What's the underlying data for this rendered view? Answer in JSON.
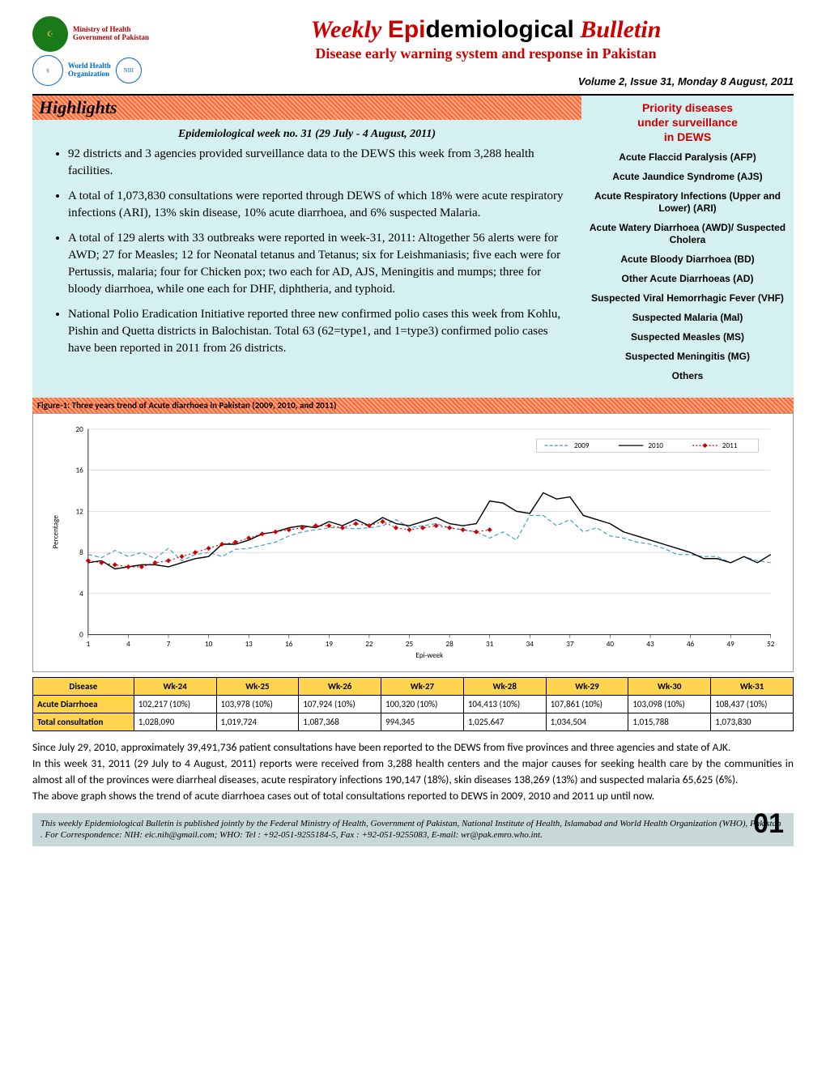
{
  "header": {
    "logos": {
      "moh_line1": "Ministry of Health",
      "moh_line2": "Government of Pakistan",
      "who_line1": "World Health",
      "who_line2": "Organization"
    },
    "title_weekly": "Weekly",
    "title_epi": "Epi",
    "title_demio": "demiological",
    "title_bulletin": " Bulletin",
    "subtitle": "Disease early warning system and response in Pakistan",
    "issue": "Volume 2, Issue  31,  Monday 8 August, 2011"
  },
  "highlights": {
    "banner": "Highlights",
    "week_line": "Epidemiological week no. 31 (29 July - 4 August, 2011)",
    "bullets": [
      "92 districts and 3 agencies provided surveillance data to the DEWS this week from 3,288 health facilities.",
      "A total of 1,073,830 consultations were reported through DEWS of which 18% were acute respiratory infections (ARI), 13% skin disease, 10% acute diarrhoea, and 6% suspected Malaria.",
      "A total of 129 alerts with 33 outbreaks were reported in week-31, 2011: Altogether 56 alerts were for AWD; 27 for Measles; 12 for Neonatal tetanus and Tetanus; six for Leishmaniasis; five each were for Pertussis, malaria; four for Chicken pox; two each for AD, AJS, Meningitis and mumps; three for bloody diarrhoea, while one each for DHF, diphtheria, and typhoid.",
      "National Polio Eradication Initiative reported three new confirmed polio cases this week from Kohlu, Pishin and Quetta districts in Balochistan. Total 63 (62=type1, and 1=type3) confirmed polio cases have been reported in 2011 from 26 districts."
    ]
  },
  "priority": {
    "title_l1": "Priority diseases",
    "title_l2": "under surveillance",
    "title_l3": "in DEWS",
    "items": [
      "Acute Flaccid Paralysis (AFP)",
      "Acute Jaundice Syndrome (AJS)",
      "Acute Respiratory Infections (Upper and Lower) (ARI)",
      "Acute Watery Diarrhoea (AWD)/ Suspected Cholera",
      "Acute Bloody Diarrhoea (BD)",
      "Other Acute Diarrhoeas (AD)",
      "Suspected Viral Hemorrhagic Fever (VHF)",
      "Suspected Malaria (Mal)",
      "Suspected Measles (MS)",
      "Suspected Meningitis (MG)",
      "Others"
    ]
  },
  "figure": {
    "banner": "Figure-1: Three years trend of Acute diarrhoea in Pakistan (2009, 2010, and 2011)",
    "type": "line",
    "y_title": "Percentage",
    "x_title": "Epi-week",
    "ylim": [
      0,
      20
    ],
    "ytick_step": 4,
    "xlim": [
      1,
      52
    ],
    "xtick_step": 3,
    "xticks": [
      1,
      4,
      7,
      10,
      13,
      16,
      19,
      22,
      25,
      28,
      31,
      34,
      37,
      40,
      43,
      46,
      49,
      52
    ],
    "background_color": "#ffffff",
    "grid_color": "#bfbfbf",
    "legend": [
      "2009",
      "2010",
      "2011"
    ],
    "series": {
      "2009": {
        "color": "#3399cc",
        "style": "dashed",
        "marker": "none",
        "values": [
          7.8,
          7.5,
          8.2,
          7.6,
          8.0,
          7.4,
          8.4,
          7.2,
          7.8,
          8.0,
          7.6,
          8.3,
          8.4,
          8.7,
          9.0,
          9.6,
          10.0,
          10.2,
          10.4,
          10.4,
          10.3,
          10.4,
          10.6,
          11.2,
          10.4,
          10.6,
          10.8,
          10.4,
          10.2,
          10.0,
          9.4,
          10.0,
          9.2,
          11.6,
          11.6,
          10.6,
          11.2,
          10.0,
          10.4,
          9.6,
          9.4,
          9.0,
          8.8,
          8.4,
          7.8,
          7.8,
          7.6,
          7.6,
          7.0,
          7.6,
          7.2,
          7.0
        ]
      },
      "2010": {
        "color": "#000000",
        "style": "solid",
        "marker": "none",
        "values": [
          7.0,
          7.2,
          6.4,
          6.6,
          6.8,
          6.8,
          6.6,
          7.0,
          7.4,
          7.6,
          8.8,
          8.8,
          9.2,
          9.8,
          10.0,
          10.4,
          10.6,
          10.4,
          11.0,
          10.6,
          11.2,
          10.6,
          11.4,
          10.8,
          10.6,
          11.0,
          11.4,
          10.8,
          10.6,
          10.8,
          13.0,
          12.8,
          12.0,
          11.8,
          13.8,
          13.2,
          13.4,
          11.6,
          11.2,
          10.8,
          10.0,
          9.6,
          9.2,
          8.8,
          8.4,
          8.0,
          7.4,
          7.4,
          7.0,
          7.6,
          7.0,
          7.8
        ]
      },
      "2011": {
        "color": "#cc0000",
        "style": "dotted",
        "marker": "diamond",
        "values": [
          7.2,
          7.0,
          6.8,
          6.6,
          6.6,
          7.0,
          7.2,
          7.6,
          8.0,
          8.4,
          8.8,
          9.0,
          9.4,
          9.8,
          10.0,
          10.2,
          10.4,
          10.6,
          10.6,
          10.4,
          10.8,
          10.6,
          11.0,
          10.4,
          10.2,
          10.4,
          10.6,
          10.4,
          10.2,
          10.0,
          10.2
        ]
      }
    }
  },
  "table": {
    "headers": [
      "Disease",
      "Wk-24",
      "Wk-25",
      "Wk-26",
      "Wk-27",
      "Wk-28",
      "Wk-29",
      "Wk-30",
      "Wk-31"
    ],
    "rows": [
      [
        "Acute Diarrhoea",
        "102,217 (10%)",
        "103,978 (10%)",
        "107,924 (10%)",
        "100,320 (10%)",
        "104,413 (10%)",
        "107,861 (10%)",
        "103,098 (10%)",
        "108,437 (10%)"
      ],
      [
        "Total consultation",
        "1,028,090",
        "1,019,724",
        "1,087,368",
        "994,345",
        "1,025,647",
        "1,034,504",
        "1,015,788",
        "1,073,830"
      ]
    ],
    "header_bg": "#ffd54f"
  },
  "body_paragraphs": [
    "Since July 29, 2010, approximately 39,491,736 patient consultations have been reported to the DEWS from five provinces and three agencies and state of AJK.",
    "In this week 31, 2011 (29 July to 4 August, 2011) reports were received from 3,288 health centers and the major causes for seeking health care by the communities in almost all of the provinces were diarrheal diseases, acute respiratory infections 190,147 (18%), skin diseases 138,269 (13%) and suspected malaria 65,625 (6%).",
    "The above graph shows the trend of acute diarrhoea cases out of total consultations reported to DEWS in 2009, 2010 and 2011 up until now."
  ],
  "footer": {
    "text": "This weekly Epidemiological Bulletin is published jointly by the Federal Ministry of Health, Government of Pakistan, National Institute of Health, Islamabad and  World Health Organization (WHO), Pakistan . For Correspondence: NIH: eic.nih@gmail.com; WHO: Tel : +92-051-9255184-5, Fax : +92-051-9255083, E-mail: wr@pak.emro.who.int.",
    "page_num": "01"
  }
}
